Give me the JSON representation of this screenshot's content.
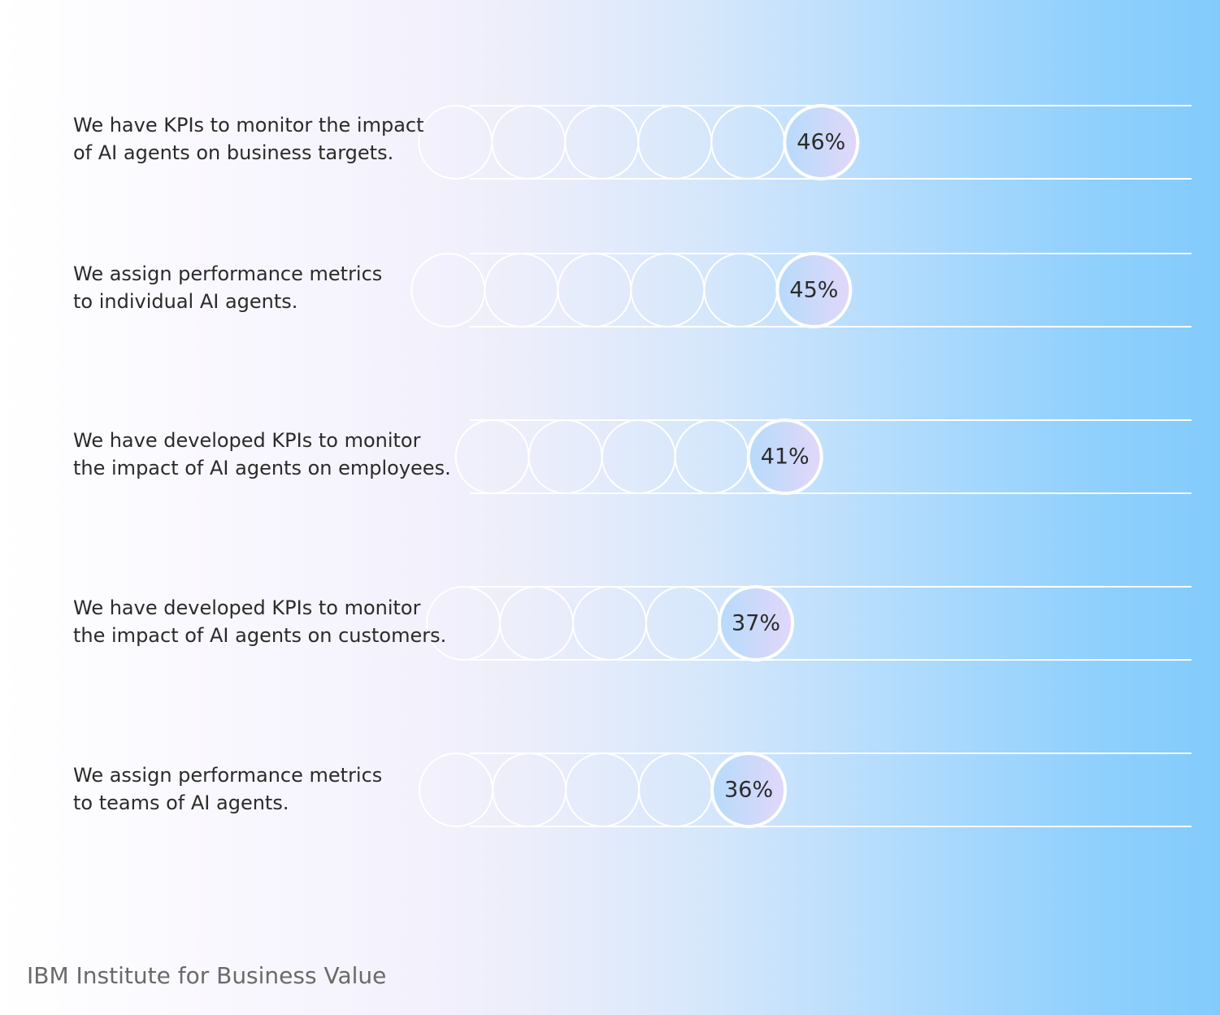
{
  "chart_data": {
    "type": "bar",
    "categories": [
      "We have KPIs to monitor the impact\nof AI agents on business targets.",
      "We assign performance metrics\nto individual AI agents.",
      "We have developed KPIs to monitor\nthe impact of AI agents on employees.",
      "We have developed KPIs to monitor\nthe impact of AI agents on customers.",
      "We assign performance metrics\nto teams of AI agents."
    ],
    "values": [
      46,
      45,
      41,
      37,
      36
    ],
    "value_labels": [
      "46%",
      "45%",
      "41%",
      "37%",
      "36%"
    ],
    "value_unit": "%",
    "ylim": [
      0,
      100
    ],
    "grid": false,
    "legend": "none"
  },
  "footer": {
    "source": "IBM Institute for Business Value"
  },
  "colors": {
    "track_line": "#ffffff",
    "value_circle_fill_start": "#b6dbfb",
    "value_circle_fill_end": "#e1d7f9",
    "text": "#2b2b2b",
    "source_text": "#6a6a6a"
  }
}
